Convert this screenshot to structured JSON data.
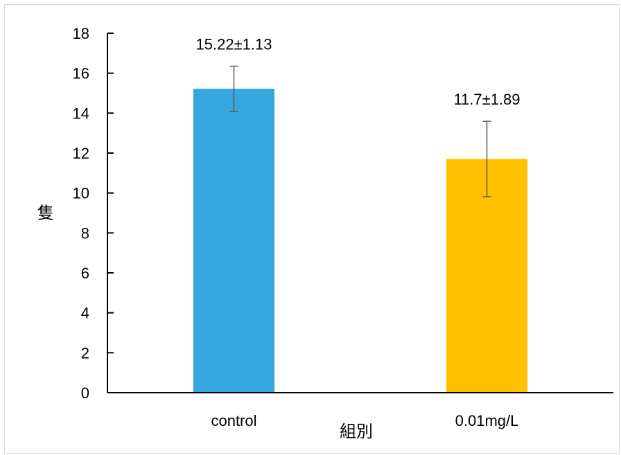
{
  "chart_data": {
    "type": "bar",
    "categories": [
      "control",
      "0.01mg/L"
    ],
    "values": [
      15.22,
      11.7
    ],
    "errors": [
      1.13,
      1.89
    ],
    "data_labels": [
      "15.22±1.13",
      "11.7±1.89"
    ],
    "colors": [
      "#34a7df",
      "#ffc000"
    ],
    "xlabel": "組別",
    "ylabel": "隻",
    "ylim": [
      0,
      18
    ],
    "yticks": [
      0,
      2,
      4,
      6,
      8,
      10,
      12,
      14,
      16,
      18
    ],
    "grid": false,
    "legend": "none"
  }
}
